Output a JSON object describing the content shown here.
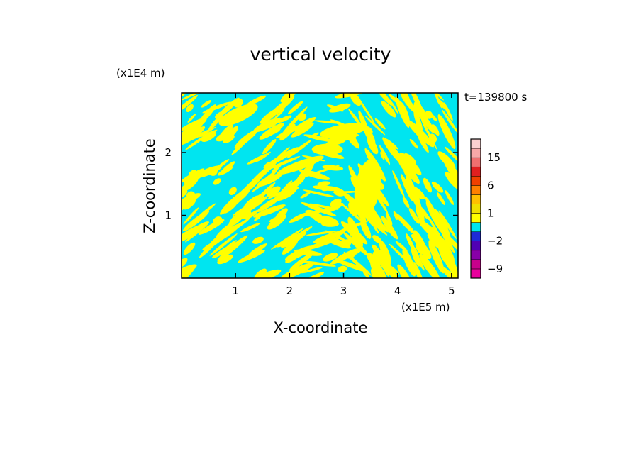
{
  "chart_data": {
    "type": "heatmap",
    "title": "vertical velocity",
    "xlabel": "X-coordinate",
    "ylabel": "Z-coordinate",
    "x_unit_label": "(x1E5 m)",
    "y_unit_label": "(x1E4 m)",
    "time_label": "t=139800 s",
    "xlim": [
      0,
      5.12
    ],
    "ylim": [
      0,
      2.95
    ],
    "x_ticks": [
      1,
      2,
      3,
      4,
      5
    ],
    "y_ticks": [
      1,
      2
    ],
    "x_tick_labels": [
      "1",
      "2",
      "3",
      "4",
      "5"
    ],
    "y_tick_labels": [
      "1",
      "2"
    ],
    "field_colors": {
      "negative": "#00e5f0",
      "positive": "#ffff00"
    },
    "colorbar": {
      "levels": [
        -12,
        -9,
        -6,
        -4,
        -2,
        -1,
        0,
        1,
        2,
        4,
        6,
        9,
        12,
        15,
        18,
        21
      ],
      "colors": [
        "#e8009c",
        "#c8008c",
        "#8800a8",
        "#5000b4",
        "#1e2ad8",
        "#00e5f0",
        "#ffff00",
        "#f0e000",
        "#ffc000",
        "#ff8000",
        "#f04000",
        "#e02020",
        "#f07070",
        "#f8a8a8",
        "#fcd0d0"
      ],
      "tick_values": [
        15,
        6,
        1,
        -2,
        -9
      ],
      "tick_labels": [
        "15",
        "6",
        "1",
        "−2",
        "−9"
      ]
    }
  }
}
